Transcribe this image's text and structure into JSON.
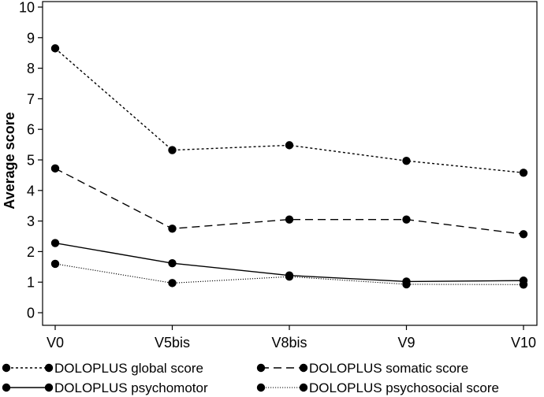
{
  "chart_data": {
    "type": "line",
    "title": "",
    "xlabel": "",
    "ylabel": "Average score",
    "categories": [
      "V0",
      "V5bis",
      "V8bis",
      "V9",
      "V10"
    ],
    "ylim": [
      0,
      10
    ],
    "yticks": [
      "0",
      "1",
      "2",
      "3",
      "4",
      "5",
      "6",
      "7",
      "8",
      "9",
      "10"
    ],
    "grid": false,
    "legend_position": "bottom",
    "series": [
      {
        "name": "DOLOPLUS global score",
        "values": [
          8.65,
          5.32,
          5.48,
          4.97,
          4.58
        ],
        "dash": "dotted",
        "color": "#000000"
      },
      {
        "name": "DOLOPLUS somatic score",
        "values": [
          4.72,
          2.75,
          3.05,
          3.05,
          2.57
        ],
        "dash": "dashed",
        "color": "#000000"
      },
      {
        "name": "DOLOPLUS psychomotor",
        "values": [
          2.28,
          1.62,
          1.22,
          1.02,
          1.05
        ],
        "dash": "solid",
        "color": "#000000"
      },
      {
        "name": "DOLOPLUS psychosocial score",
        "values": [
          1.6,
          0.97,
          1.18,
          0.93,
          0.92
        ],
        "dash": "fine-dotted",
        "color": "#000000"
      }
    ]
  }
}
